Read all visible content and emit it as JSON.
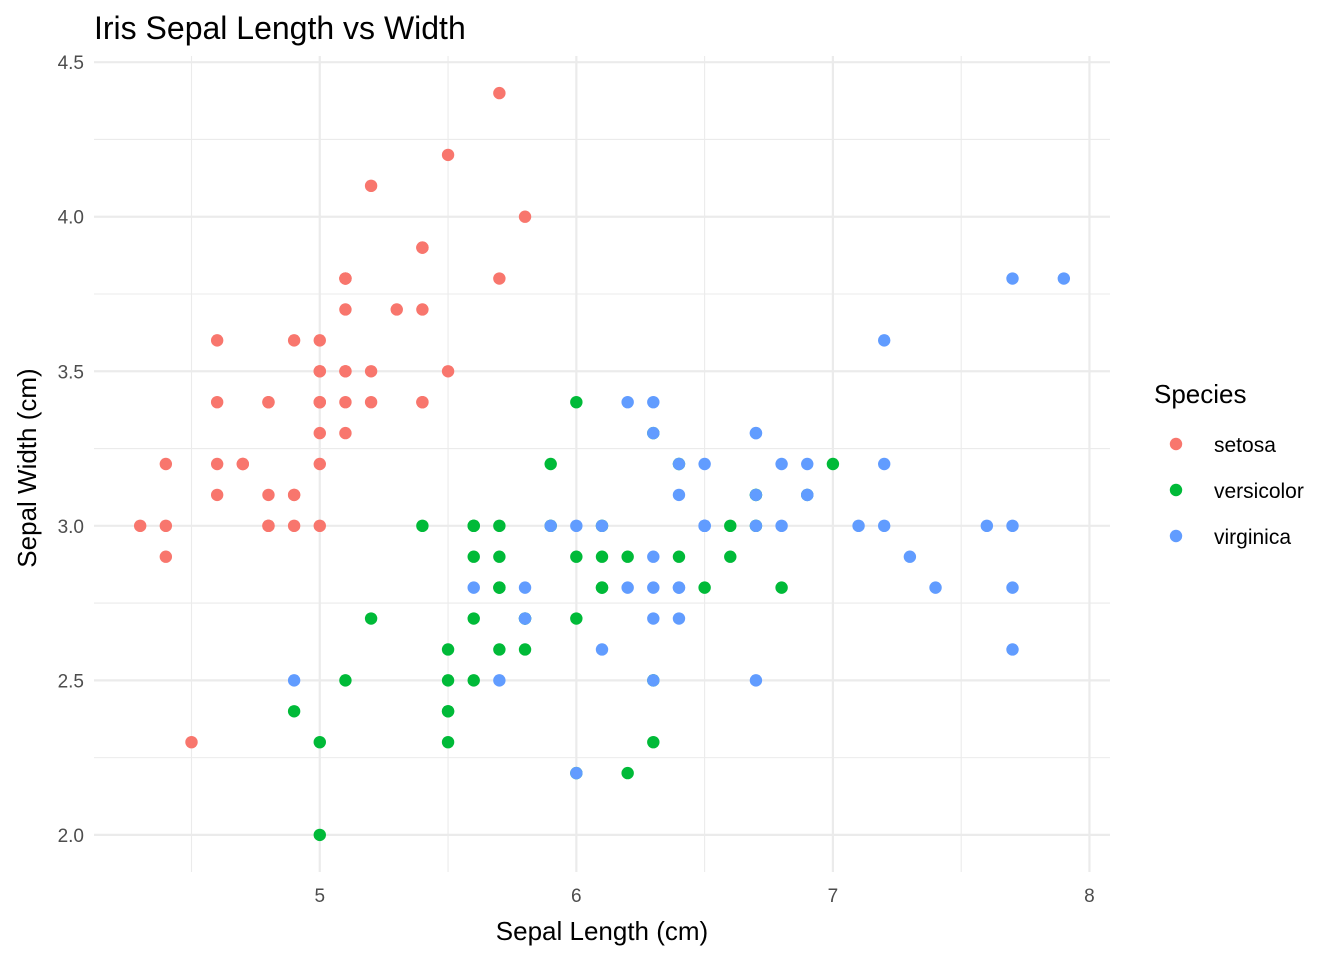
{
  "chart_data": {
    "type": "scatter",
    "title": "Iris Sepal Length vs Width",
    "xlabel": "Sepal Length (cm)",
    "ylabel": "Sepal Width (cm)",
    "xlim": [
      4.3,
      7.9
    ],
    "ylim": [
      2.0,
      4.4
    ],
    "x_ticks": [
      5,
      6,
      7,
      8
    ],
    "y_ticks": [
      2.0,
      2.5,
      3.0,
      3.5,
      4.0,
      4.5
    ],
    "grid": true,
    "legend": {
      "title": "Species",
      "position": "right"
    },
    "series": [
      {
        "name": "setosa",
        "color": "#f8766d",
        "points": [
          [
            5.1,
            3.5
          ],
          [
            4.9,
            3.0
          ],
          [
            4.7,
            3.2
          ],
          [
            4.6,
            3.1
          ],
          [
            5.0,
            3.6
          ],
          [
            5.4,
            3.9
          ],
          [
            4.6,
            3.4
          ],
          [
            5.0,
            3.4
          ],
          [
            4.4,
            2.9
          ],
          [
            4.9,
            3.1
          ],
          [
            5.4,
            3.7
          ],
          [
            4.8,
            3.4
          ],
          [
            4.8,
            3.0
          ],
          [
            4.3,
            3.0
          ],
          [
            5.8,
            4.0
          ],
          [
            5.7,
            4.4
          ],
          [
            5.4,
            3.9
          ],
          [
            5.1,
            3.5
          ],
          [
            5.7,
            3.8
          ],
          [
            5.1,
            3.8
          ],
          [
            5.4,
            3.4
          ],
          [
            5.1,
            3.7
          ],
          [
            4.6,
            3.6
          ],
          [
            5.1,
            3.3
          ],
          [
            4.8,
            3.4
          ],
          [
            5.0,
            3.0
          ],
          [
            5.0,
            3.4
          ],
          [
            5.2,
            3.5
          ],
          [
            5.2,
            3.4
          ],
          [
            4.7,
            3.2
          ],
          [
            4.8,
            3.1
          ],
          [
            5.4,
            3.4
          ],
          [
            5.2,
            4.1
          ],
          [
            5.5,
            4.2
          ],
          [
            4.9,
            3.1
          ],
          [
            5.0,
            3.2
          ],
          [
            5.5,
            3.5
          ],
          [
            4.9,
            3.6
          ],
          [
            4.4,
            3.0
          ],
          [
            5.1,
            3.4
          ],
          [
            5.0,
            3.5
          ],
          [
            4.5,
            2.3
          ],
          [
            4.4,
            3.2
          ],
          [
            5.0,
            3.5
          ],
          [
            5.1,
            3.8
          ],
          [
            4.8,
            3.0
          ],
          [
            5.1,
            3.8
          ],
          [
            4.6,
            3.2
          ],
          [
            5.3,
            3.7
          ],
          [
            5.0,
            3.3
          ]
        ]
      },
      {
        "name": "versicolor",
        "color": "#00ba38",
        "points": [
          [
            7.0,
            3.2
          ],
          [
            6.4,
            3.2
          ],
          [
            6.9,
            3.1
          ],
          [
            5.5,
            2.3
          ],
          [
            6.5,
            2.8
          ],
          [
            5.7,
            2.8
          ],
          [
            6.3,
            3.3
          ],
          [
            4.9,
            2.4
          ],
          [
            6.6,
            2.9
          ],
          [
            5.2,
            2.7
          ],
          [
            5.0,
            2.0
          ],
          [
            5.9,
            3.0
          ],
          [
            6.0,
            2.2
          ],
          [
            6.1,
            2.9
          ],
          [
            5.6,
            2.9
          ],
          [
            6.7,
            3.1
          ],
          [
            5.6,
            3.0
          ],
          [
            5.8,
            2.7
          ],
          [
            6.2,
            2.2
          ],
          [
            5.6,
            2.5
          ],
          [
            5.9,
            3.2
          ],
          [
            6.1,
            2.8
          ],
          [
            6.3,
            2.5
          ],
          [
            6.1,
            2.8
          ],
          [
            6.4,
            2.9
          ],
          [
            6.6,
            3.0
          ],
          [
            6.8,
            2.8
          ],
          [
            6.7,
            3.0
          ],
          [
            6.0,
            2.9
          ],
          [
            5.7,
            2.6
          ],
          [
            5.5,
            2.4
          ],
          [
            5.5,
            2.4
          ],
          [
            5.8,
            2.7
          ],
          [
            6.0,
            2.7
          ],
          [
            5.4,
            3.0
          ],
          [
            6.0,
            3.4
          ],
          [
            6.7,
            3.1
          ],
          [
            6.3,
            2.3
          ],
          [
            5.6,
            3.0
          ],
          [
            5.5,
            2.5
          ],
          [
            5.5,
            2.6
          ],
          [
            6.1,
            3.0
          ],
          [
            5.8,
            2.6
          ],
          [
            5.0,
            2.3
          ],
          [
            5.6,
            2.7
          ],
          [
            5.7,
            3.0
          ],
          [
            5.7,
            2.9
          ],
          [
            6.2,
            2.9
          ],
          [
            5.1,
            2.5
          ],
          [
            5.7,
            2.8
          ]
        ]
      },
      {
        "name": "virginica",
        "color": "#619cff",
        "points": [
          [
            6.3,
            3.3
          ],
          [
            5.8,
            2.7
          ],
          [
            7.1,
            3.0
          ],
          [
            6.3,
            2.9
          ],
          [
            6.5,
            3.0
          ],
          [
            7.6,
            3.0
          ],
          [
            4.9,
            2.5
          ],
          [
            7.3,
            2.9
          ],
          [
            6.7,
            2.5
          ],
          [
            7.2,
            3.6
          ],
          [
            6.5,
            3.2
          ],
          [
            6.4,
            2.7
          ],
          [
            6.8,
            3.0
          ],
          [
            5.7,
            2.5
          ],
          [
            5.8,
            2.8
          ],
          [
            6.4,
            3.2
          ],
          [
            6.5,
            3.0
          ],
          [
            7.7,
            3.8
          ],
          [
            7.7,
            2.6
          ],
          [
            6.0,
            2.2
          ],
          [
            6.9,
            3.2
          ],
          [
            5.6,
            2.8
          ],
          [
            7.7,
            2.8
          ],
          [
            6.3,
            2.7
          ],
          [
            6.7,
            3.3
          ],
          [
            7.2,
            3.2
          ],
          [
            6.2,
            2.8
          ],
          [
            6.1,
            3.0
          ],
          [
            6.4,
            2.8
          ],
          [
            7.2,
            3.0
          ],
          [
            7.4,
            2.8
          ],
          [
            7.9,
            3.8
          ],
          [
            6.4,
            2.8
          ],
          [
            6.3,
            2.8
          ],
          [
            6.1,
            2.6
          ],
          [
            7.7,
            3.0
          ],
          [
            6.3,
            3.4
          ],
          [
            6.4,
            3.1
          ],
          [
            6.0,
            3.0
          ],
          [
            6.9,
            3.1
          ],
          [
            6.7,
            3.1
          ],
          [
            6.9,
            3.1
          ],
          [
            5.8,
            2.7
          ],
          [
            6.8,
            3.2
          ],
          [
            6.7,
            3.3
          ],
          [
            6.7,
            3.0
          ],
          [
            6.3,
            2.5
          ],
          [
            6.5,
            3.0
          ],
          [
            6.2,
            3.4
          ],
          [
            5.9,
            3.0
          ]
        ]
      }
    ]
  }
}
